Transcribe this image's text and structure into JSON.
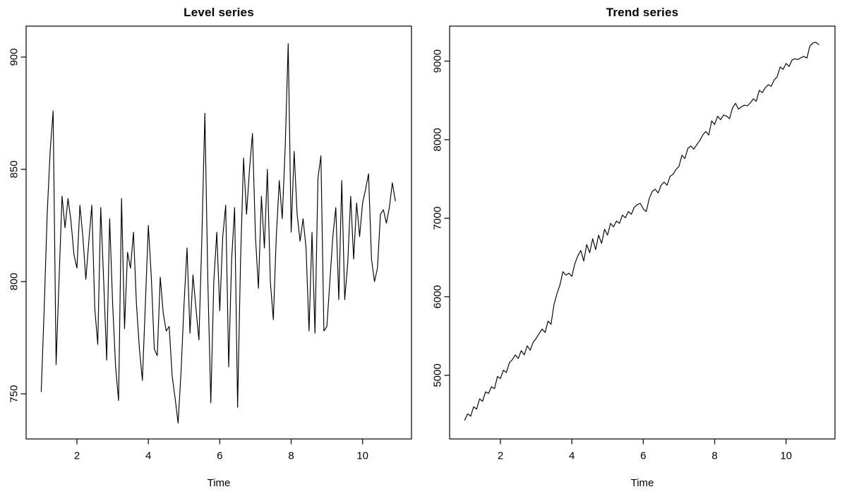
{
  "colors": {
    "line": "#000000",
    "axis": "#000000",
    "text": "#000000",
    "background": "#ffffff"
  },
  "chart_data": [
    {
      "type": "line",
      "title": "Level series",
      "xlabel": "Time",
      "ylabel": "",
      "legend": "none",
      "grid": false,
      "x_start": 1,
      "frequency": 12,
      "x_ticks": [
        2,
        4,
        6,
        8,
        10
      ],
      "y_ticks": [
        750,
        800,
        850,
        900
      ],
      "xlim": [
        0.577,
        11.37
      ],
      "ylim": [
        729.9,
        913.8
      ],
      "values": [
        751,
        788,
        830,
        858,
        876,
        763,
        801,
        838,
        824,
        837,
        827,
        812,
        806,
        834,
        820,
        801,
        818,
        834,
        788,
        772,
        833,
        800,
        765,
        828,
        790,
        762,
        747,
        837,
        779,
        813,
        806,
        822,
        790,
        770,
        756,
        790,
        825,
        802,
        770,
        767,
        802,
        786,
        778,
        780,
        758,
        748,
        737,
        760,
        790,
        815,
        777,
        803,
        788,
        774,
        820,
        875,
        800,
        746,
        800,
        822,
        787,
        820,
        834,
        762,
        810,
        833,
        744,
        810,
        855,
        830,
        850,
        866,
        820,
        797,
        838,
        815,
        850,
        800,
        783,
        820,
        845,
        828,
        860,
        906,
        822,
        858,
        830,
        818,
        828,
        815,
        778,
        822,
        777,
        846,
        856,
        778,
        780,
        800,
        820,
        833,
        792,
        845,
        792,
        808,
        838,
        810,
        835,
        820,
        835,
        841,
        848,
        810,
        800,
        806,
        830,
        832,
        826,
        833,
        844,
        836
      ]
    },
    {
      "type": "line",
      "title": "Trend series",
      "xlabel": "Time",
      "ylabel": "",
      "legend": "none",
      "grid": false,
      "x_start": 1,
      "frequency": 12,
      "x_ticks": [
        2,
        4,
        6,
        8,
        10
      ],
      "y_ticks": [
        5000,
        6000,
        7000,
        8000,
        9000
      ],
      "xlim": [
        0.577,
        11.37
      ],
      "ylim": [
        4190,
        9446
      ],
      "values": [
        4430,
        4510,
        4480,
        4600,
        4570,
        4700,
        4670,
        4790,
        4770,
        4855,
        4830,
        4985,
        4960,
        5065,
        5035,
        5160,
        5200,
        5260,
        5215,
        5315,
        5260,
        5375,
        5320,
        5420,
        5470,
        5530,
        5590,
        5545,
        5690,
        5650,
        5900,
        6040,
        6150,
        6320,
        6275,
        6300,
        6260,
        6420,
        6520,
        6590,
        6455,
        6665,
        6560,
        6740,
        6600,
        6785,
        6680,
        6860,
        6785,
        6935,
        6890,
        6965,
        6935,
        7040,
        7005,
        7085,
        7050,
        7140,
        7175,
        7190,
        7120,
        7085,
        7250,
        7340,
        7370,
        7322,
        7420,
        7460,
        7420,
        7533,
        7560,
        7620,
        7660,
        7802,
        7760,
        7890,
        7920,
        7880,
        7937,
        7990,
        8060,
        8104,
        8059,
        8239,
        8194,
        8299,
        8254,
        8314,
        8300,
        8269,
        8404,
        8464,
        8389,
        8419,
        8440,
        8431,
        8470,
        8521,
        8490,
        8629,
        8600,
        8660,
        8700,
        8680,
        8760,
        8800,
        8925,
        8896,
        8971,
        8932,
        9015,
        9030,
        9020,
        9045,
        9060,
        9040,
        9195,
        9231,
        9240,
        9210
      ]
    }
  ]
}
